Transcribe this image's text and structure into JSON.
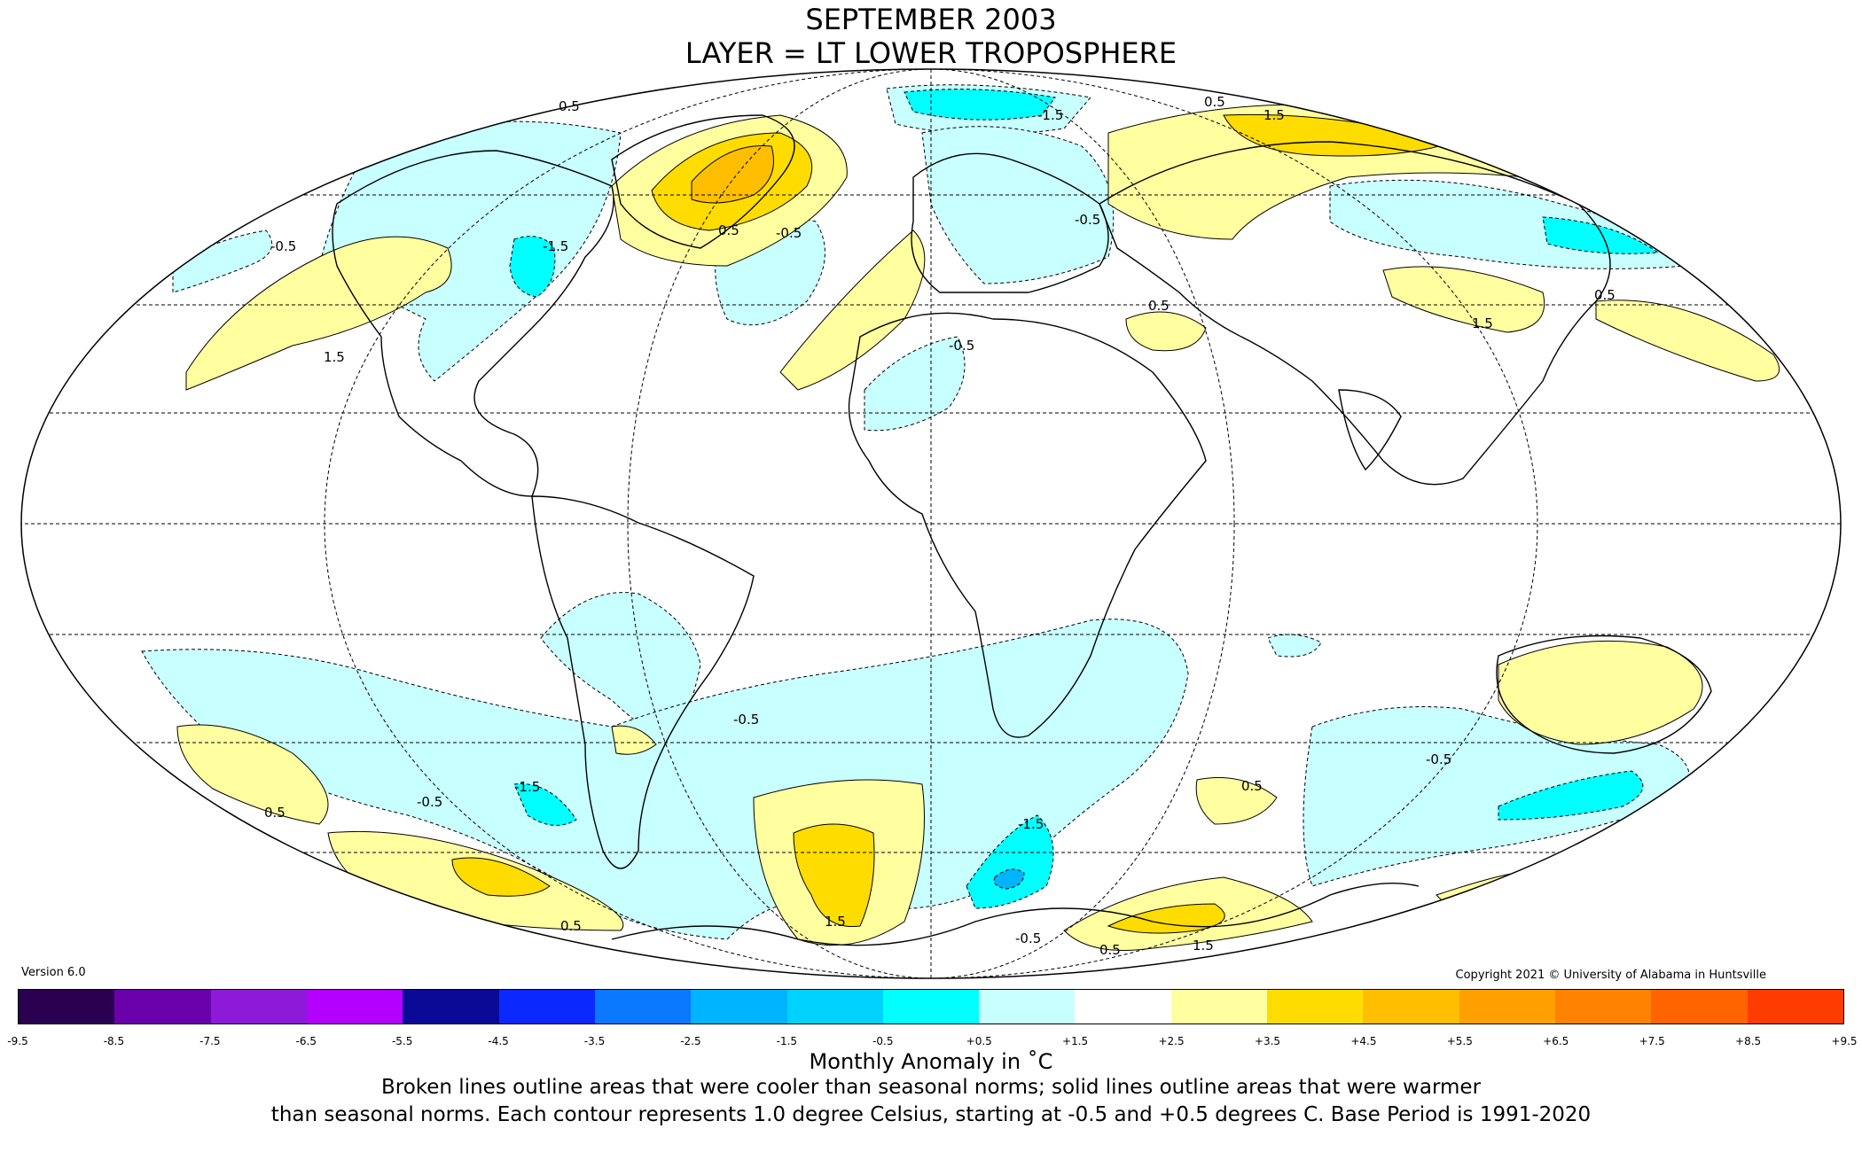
{
  "header": {
    "title_line1": "SEPTEMBER 2003",
    "title_line2": "LAYER = LT LOWER TROPOSPHERE"
  },
  "version": "Version 6.0",
  "copyright": "Copyright 2021 © University of Alabama in Huntsville",
  "colorbar": {
    "ticks": [
      "-9.5",
      "-8.5",
      "-7.5",
      "-6.5",
      "-5.5",
      "-4.5",
      "-3.5",
      "-2.5",
      "-1.5",
      "-0.5",
      "+0.5",
      "+1.5",
      "+2.5",
      "+3.5",
      "+4.5",
      "+5.5",
      "+6.5",
      "+7.5",
      "+8.5",
      "+9.5"
    ],
    "colors": [
      "#2b0050",
      "#6a00aa",
      "#8c1ad8",
      "#b300ff",
      "#0a0a96",
      "#0a28ff",
      "#0a78ff",
      "#00b4ff",
      "#00d2ff",
      "#00ffff",
      "#c8ffff",
      "#ffffff",
      "#ffffa0",
      "#ffdc00",
      "#ffbe00",
      "#ffa000",
      "#ff8200",
      "#ff6400",
      "#ff3c00",
      "#e10000",
      "#b40000"
    ],
    "label": "Monthly Anomaly in ˚C"
  },
  "caption_line1": "Broken lines outline areas that were cooler than seasonal norms; solid lines outline areas that were warmer",
  "caption_line2": "than seasonal norms. Each contour represents 1.0 degree Celsius, starting at -0.5 and +0.5 degrees C. Base Period is 1991-2020",
  "contour_labels": {
    "l1": "0.5",
    "l2": "-0.5",
    "l3": "1.5",
    "l4": "-1.5",
    "l5": "0.5",
    "l6": "-0.5",
    "l7": "0.5",
    "l8": "1.5",
    "l9": "-0.5",
    "l10": "-1.5",
    "l11": "0.5",
    "l12": "1.5",
    "l13": "-0.5",
    "l14": "0.5",
    "l15": "-1.5",
    "l16": "0.5",
    "l17": "-0.5",
    "l18": "0.5",
    "l19": "-0.5",
    "l20": "1.5",
    "l21": "0.5",
    "l22": "-0.5",
    "l23": "-1.5",
    "l24": "0.5",
    "l25": "1.5",
    "l26": "-0.5"
  }
}
